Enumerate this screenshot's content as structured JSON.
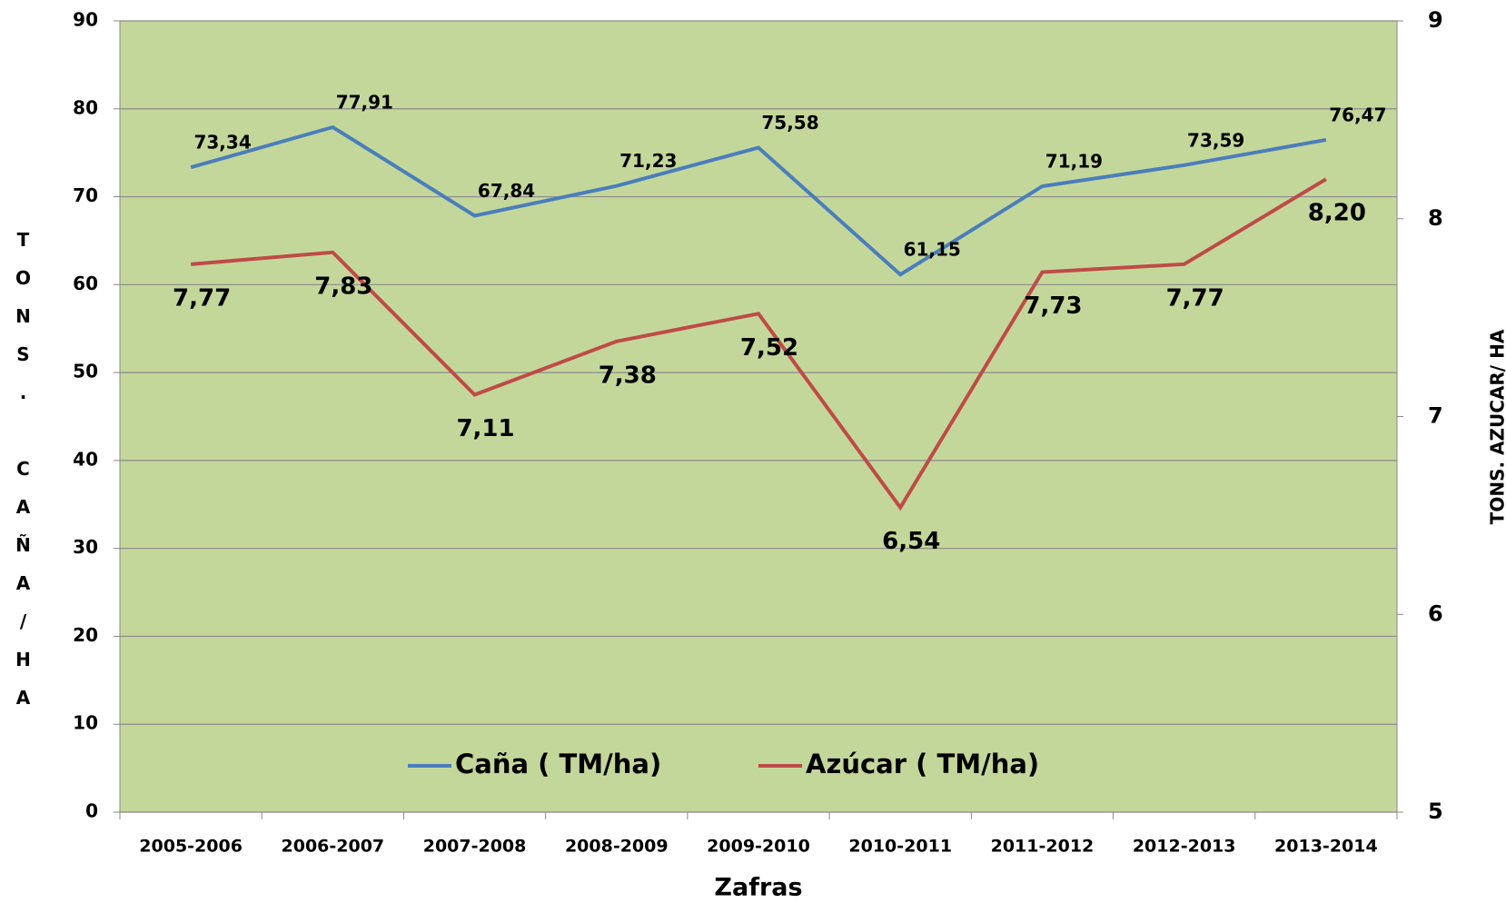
{
  "chart_data": {
    "type": "line",
    "x_label": "Zafras",
    "y_label": "TONS. CAÑA/HA",
    "y2_label": "TONS. AZUCAR/ HA",
    "categories": [
      "2005-2006",
      "2006-2007",
      "2007-2008",
      "2008-2009",
      "2009-2010",
      "2010-2011",
      "2011-2012",
      "2012-2013",
      "2013-2014"
    ],
    "series": [
      {
        "name": "Caña ( TM/ha)",
        "color": "#4a7ebb",
        "values": [
          73.34,
          77.91,
          67.84,
          71.23,
          75.58,
          61.15,
          71.19,
          73.59,
          76.47
        ],
        "value_labels": [
          "73,34",
          "77,91",
          "67,84",
          "71,23",
          "75,58",
          "61,15",
          "71,19",
          "73,59",
          "76,47"
        ]
      },
      {
        "name": "Azúcar ( TM/ha)",
        "color": "#be4b48",
        "axis": "y2",
        "values": [
          7.77,
          7.83,
          7.11,
          7.38,
          7.52,
          6.54,
          7.73,
          7.77,
          8.2
        ],
        "value_labels": [
          "7,77",
          "7,83",
          "7,11",
          "7,38",
          "7,52",
          "6,54",
          "7,73",
          "7,77",
          "8,20"
        ]
      }
    ],
    "ylim": [
      0,
      90
    ],
    "yticks": [
      0,
      10,
      20,
      30,
      40,
      50,
      60,
      70,
      80,
      90
    ],
    "y2lim": [
      5,
      9
    ],
    "y2ticks": [
      5,
      6,
      7,
      8,
      9
    ],
    "grid": true,
    "legend": "bottom",
    "background": "#c4d79b"
  }
}
